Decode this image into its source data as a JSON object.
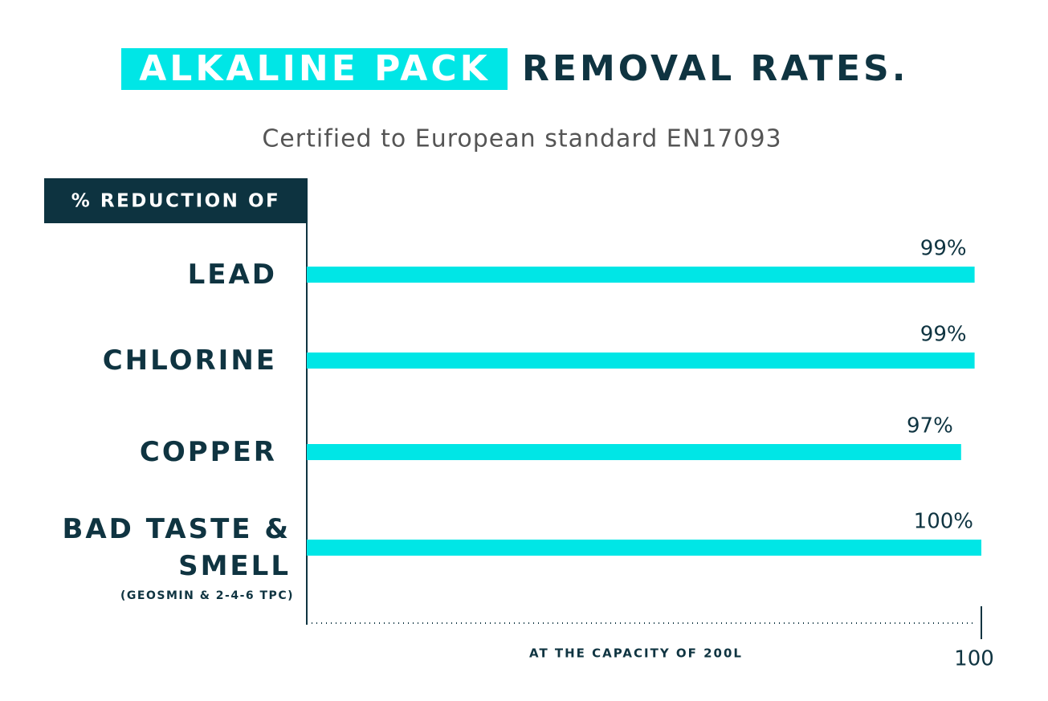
{
  "chart_data": {
    "type": "bar",
    "orientation": "horizontal",
    "title_highlight": "ALKALINE PACK",
    "title": "REMOVAL RATES.",
    "subtitle": "Certified to European standard EN17093",
    "y_label": "% REDUCTION OF",
    "x_label": "AT THE CAPACITY OF 200L",
    "categories": [
      "LEAD",
      "CHLORINE",
      "COPPER",
      "BAD TASTE & SMELL"
    ],
    "category_notes": [
      null,
      null,
      null,
      "(GEOSMIN & 2-4-6 TPC)"
    ],
    "values": [
      99,
      99,
      97,
      100
    ],
    "value_labels": [
      "99%",
      "99%",
      "97%",
      "100%"
    ],
    "color": "#00e6e6",
    "xlim": [
      0,
      100
    ],
    "xticks": [
      100
    ]
  }
}
